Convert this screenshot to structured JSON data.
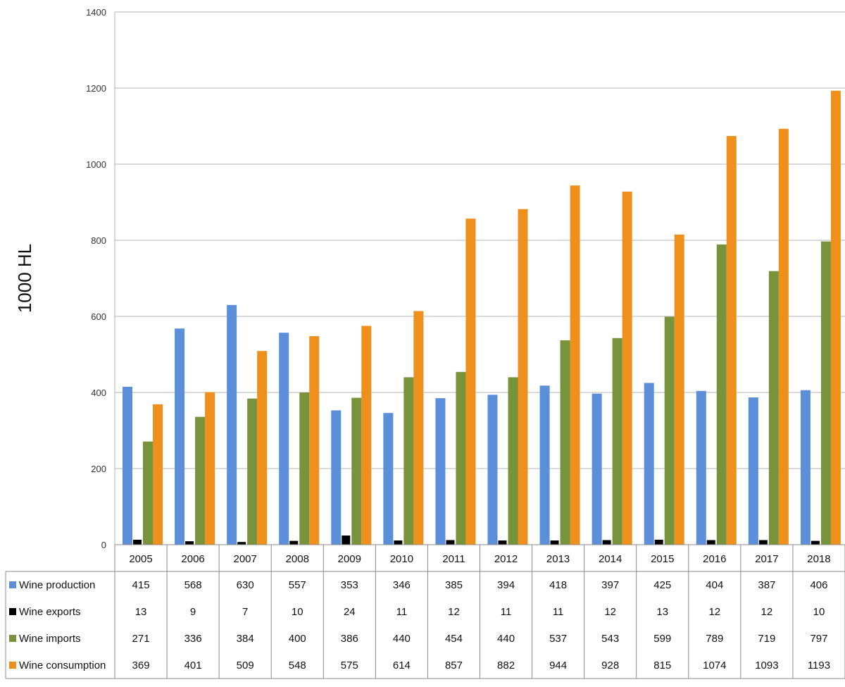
{
  "chart_data": {
    "type": "bar",
    "ylabel": "1000 HL",
    "ylim": [
      0,
      1400
    ],
    "yticks": [
      0,
      200,
      400,
      600,
      800,
      1000,
      1200,
      1400
    ],
    "grid": true,
    "legend": "data-table-below",
    "categories": [
      "2005",
      "2006",
      "2007",
      "2008",
      "2009",
      "2010",
      "2011",
      "2012",
      "2013",
      "2014",
      "2015",
      "2016",
      "2017",
      "2018"
    ],
    "series": [
      {
        "name": "Wine production",
        "color": "#5b8fd9",
        "values": [
          415,
          568,
          630,
          557,
          353,
          346,
          385,
          394,
          418,
          397,
          425,
          404,
          387,
          406
        ]
      },
      {
        "name": "Wine exports",
        "color": "#000000",
        "values": [
          13,
          9,
          7,
          10,
          24,
          11,
          12,
          11,
          11,
          12,
          13,
          12,
          12,
          10
        ]
      },
      {
        "name": "Wine imports",
        "color": "#77933c",
        "values": [
          271,
          336,
          384,
          400,
          386,
          440,
          454,
          440,
          537,
          543,
          599,
          789,
          719,
          797
        ]
      },
      {
        "name": "Wine consumption",
        "color": "#f0901c",
        "values": [
          369,
          401,
          509,
          548,
          575,
          614,
          857,
          882,
          944,
          928,
          815,
          1074,
          1093,
          1193
        ]
      }
    ]
  }
}
